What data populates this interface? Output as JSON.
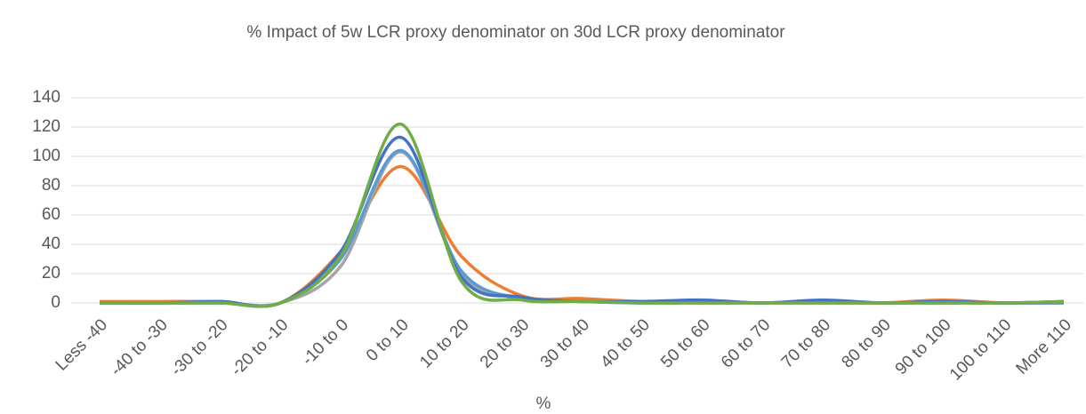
{
  "chart_data": {
    "type": "line",
    "title": "% Impact of 5w LCR proxy denominator on 30d LCR proxy denominator",
    "x_label": "%",
    "categories": [
      "Less -40",
      "-40 to -30",
      "-30 to -20",
      "-20 to -10",
      "-10 to 0",
      "0 to 10",
      "10 to 20",
      "20 to 30",
      "30 to 40",
      "40 to 50",
      "50 to 60",
      "60 to 70",
      "70 to 80",
      "80 to 90",
      "90 to 100",
      "100 to 110",
      "More 110"
    ],
    "series": [
      {
        "color": "#ed7d31",
        "values": [
          1,
          1,
          1,
          0,
          35,
          93,
          32,
          5,
          3,
          1,
          0,
          0,
          0,
          0,
          2,
          0,
          0
        ]
      },
      {
        "color": "#a5a5a5",
        "values": [
          0,
          0,
          0,
          0,
          25,
          103,
          20,
          3,
          1,
          0,
          0,
          0,
          0,
          0,
          0,
          0,
          0
        ]
      },
      {
        "color": "#5b9bd5",
        "values": [
          0,
          0,
          0,
          0,
          30,
          104,
          22,
          3,
          1,
          0,
          1,
          0,
          1,
          0,
          0,
          0,
          0
        ]
      },
      {
        "color": "#4472c4",
        "values": [
          0,
          0,
          1,
          0,
          35,
          113,
          18,
          4,
          1,
          1,
          2,
          0,
          2,
          0,
          1,
          0,
          1
        ]
      },
      {
        "color": "#70ad47",
        "values": [
          0,
          0,
          0,
          0,
          32,
          122,
          15,
          2,
          1,
          0,
          0,
          0,
          0,
          0,
          0,
          0,
          1
        ]
      }
    ],
    "ylim": [
      0,
      140
    ],
    "yticks": [
      0,
      20,
      40,
      60,
      80,
      100,
      120,
      140
    ],
    "grid": true,
    "smooth": true
  }
}
